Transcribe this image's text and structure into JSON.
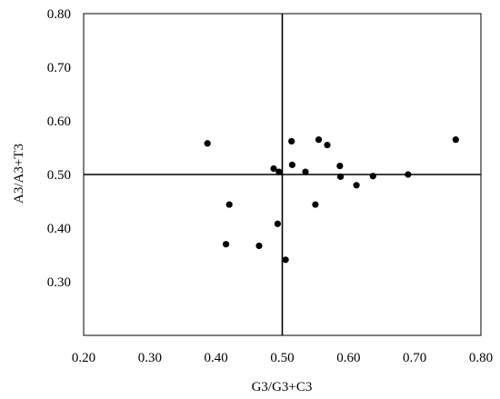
{
  "chart_data": {
    "type": "scatter",
    "title": "",
    "xlabel": "G3/G3+C3",
    "ylabel": "A3/A3+T3",
    "xlim": [
      0.2,
      0.8
    ],
    "ylim": [
      0.2,
      0.8
    ],
    "xticks": [
      "0.20",
      "0.30",
      "0.40",
      "0.50",
      "0.60",
      "0.70",
      "0.80"
    ],
    "yticks": [
      "0.30",
      "0.40",
      "0.50",
      "0.60",
      "0.70",
      "0.80"
    ],
    "reference_lines": {
      "x": 0.5,
      "y": 0.5
    },
    "grid": false,
    "legend": "none",
    "marker_color": "#000000",
    "series": [
      {
        "points": [
          {
            "x": 0.387,
            "y": 0.558
          },
          {
            "x": 0.42,
            "y": 0.444
          },
          {
            "x": 0.415,
            "y": 0.37
          },
          {
            "x": 0.465,
            "y": 0.367
          },
          {
            "x": 0.487,
            "y": 0.511
          },
          {
            "x": 0.495,
            "y": 0.505
          },
          {
            "x": 0.493,
            "y": 0.408
          },
          {
            "x": 0.505,
            "y": 0.341
          },
          {
            "x": 0.514,
            "y": 0.562
          },
          {
            "x": 0.515,
            "y": 0.518
          },
          {
            "x": 0.535,
            "y": 0.505
          },
          {
            "x": 0.55,
            "y": 0.444
          },
          {
            "x": 0.555,
            "y": 0.565
          },
          {
            "x": 0.568,
            "y": 0.555
          },
          {
            "x": 0.587,
            "y": 0.516
          },
          {
            "x": 0.588,
            "y": 0.496
          },
          {
            "x": 0.612,
            "y": 0.48
          },
          {
            "x": 0.637,
            "y": 0.497
          },
          {
            "x": 0.69,
            "y": 0.5
          },
          {
            "x": 0.762,
            "y": 0.565
          }
        ]
      }
    ]
  }
}
